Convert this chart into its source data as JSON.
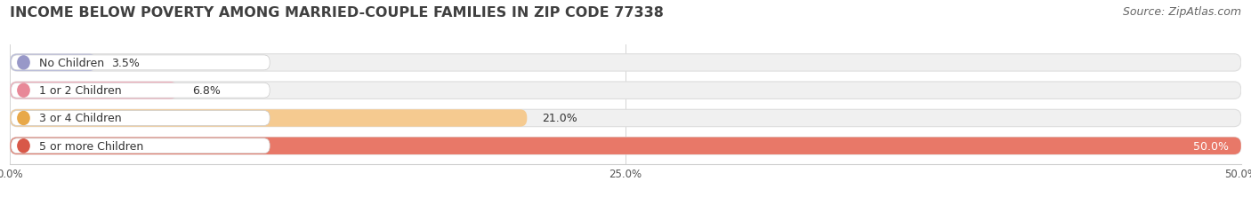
{
  "title": "INCOME BELOW POVERTY AMONG MARRIED-COUPLE FAMILIES IN ZIP CODE 77338",
  "source": "Source: ZipAtlas.com",
  "categories": [
    "No Children",
    "1 or 2 Children",
    "3 or 4 Children",
    "5 or more Children"
  ],
  "values": [
    3.5,
    6.8,
    21.0,
    50.0
  ],
  "bar_colors": [
    "#b8bcde",
    "#f4a8b8",
    "#f5ca90",
    "#e87868"
  ],
  "label_dot_colors": [
    "#9898c8",
    "#e88898",
    "#e8a848",
    "#d85848"
  ],
  "xlim": [
    0,
    50
  ],
  "xticks": [
    0.0,
    25.0,
    50.0
  ],
  "xtick_labels": [
    "0.0%",
    "25.0%",
    "50.0%"
  ],
  "background_color": "#ffffff",
  "bar_bg_color": "#f0f0f0",
  "title_fontsize": 11.5,
  "source_fontsize": 9,
  "label_fontsize": 9,
  "value_fontsize": 9
}
